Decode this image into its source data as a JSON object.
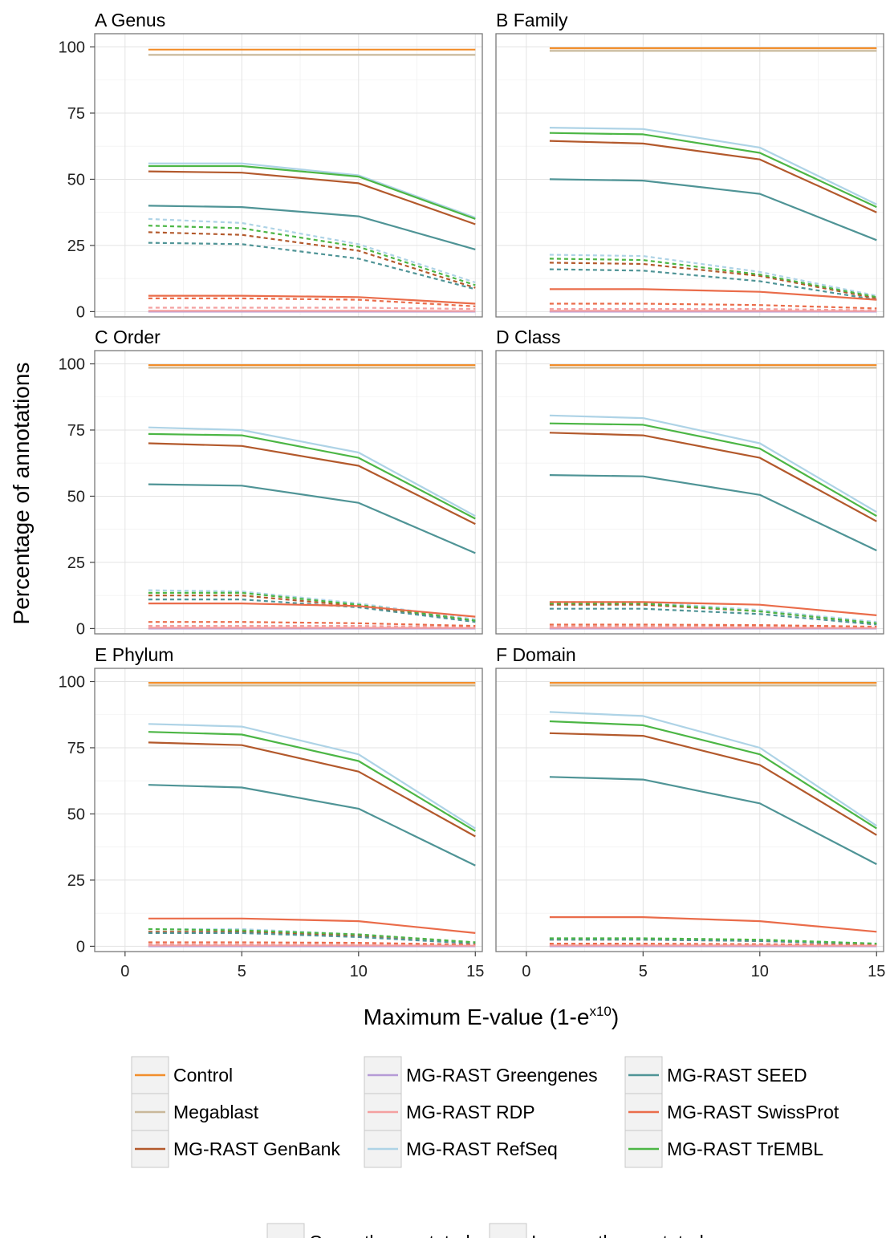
{
  "chart_data": {
    "type": "line",
    "facet_layout": "3 rows x 2 columns",
    "ylabel": "Percentage of annotations",
    "xlabel_main": "Maximum E-value (1-e",
    "xlabel_sup": "x10",
    "xlabel_close": ")",
    "ylim": [
      -2,
      105
    ],
    "xlim": [
      -1.3,
      15.3
    ],
    "x_ticks": [
      0,
      5,
      10,
      15
    ],
    "y_ticks": [
      0,
      25,
      50,
      75,
      100
    ],
    "x": [
      1,
      5,
      10,
      15
    ],
    "grid": true,
    "legend_position": "bottom",
    "series_legend": [
      {
        "name": "Control",
        "color": "#F28E2B"
      },
      {
        "name": "Megablast",
        "color": "#C9B89A"
      },
      {
        "name": "MG-RAST GenBank",
        "color": "#B3592C"
      },
      {
        "name": "MG-RAST Greengenes",
        "color": "#B69BD6"
      },
      {
        "name": "MG-RAST RDP",
        "color": "#F4A0A0"
      },
      {
        "name": "MG-RAST RefSeq",
        "color": "#AED3E6"
      },
      {
        "name": "MG-RAST SEED",
        "color": "#4F9496"
      },
      {
        "name": "MG-RAST SwissProt",
        "color": "#EA6C4A"
      },
      {
        "name": "MG-RAST TrEMBL",
        "color": "#4CB645"
      }
    ],
    "linetype_legend": [
      {
        "name": "Correctly annotated",
        "style": "solid"
      },
      {
        "name": "Incorrectly annotated",
        "style": "dashed"
      }
    ],
    "panels": [
      {
        "title": "A Genus",
        "correct": {
          "Control": [
            99,
            99,
            99,
            99
          ],
          "Megablast": [
            97,
            97,
            97,
            97
          ],
          "MG-RAST GenBank": [
            53,
            52.5,
            48.5,
            33
          ],
          "MG-RAST Greengenes": [
            0,
            0,
            0,
            0
          ],
          "MG-RAST RDP": [
            0.3,
            0.3,
            0.3,
            0.2
          ],
          "MG-RAST RefSeq": [
            56,
            56,
            51.5,
            35.5
          ],
          "MG-RAST SEED": [
            40,
            39.5,
            36,
            23.5
          ],
          "MG-RAST SwissProt": [
            6,
            6,
            5.5,
            3
          ],
          "MG-RAST TrEMBL": [
            55,
            55,
            51,
            35
          ]
        },
        "incorrect": {
          "MG-RAST GenBank": [
            30,
            29,
            23,
            9
          ],
          "MG-RAST Greengenes": [
            0,
            0,
            0,
            0
          ],
          "MG-RAST RDP": [
            1.5,
            1.5,
            1.5,
            1
          ],
          "MG-RAST RefSeq": [
            35,
            33.5,
            25.5,
            11
          ],
          "MG-RAST SEED": [
            26,
            25.5,
            20,
            8.5
          ],
          "MG-RAST SwissProt": [
            5,
            5,
            4.5,
            2
          ],
          "MG-RAST TrEMBL": [
            32.5,
            31.5,
            24.5,
            10
          ]
        }
      },
      {
        "title": "B Family",
        "correct": {
          "Control": [
            99.5,
            99.5,
            99.5,
            99.5
          ],
          "Megablast": [
            98.5,
            98.5,
            98.5,
            98.5
          ],
          "MG-RAST GenBank": [
            64.5,
            63.5,
            57.5,
            37.5
          ],
          "MG-RAST Greengenes": [
            0,
            0,
            0,
            0
          ],
          "MG-RAST RDP": [
            0.3,
            0.3,
            0.3,
            0.2
          ],
          "MG-RAST RefSeq": [
            69.5,
            69,
            62,
            40.5
          ],
          "MG-RAST SEED": [
            50,
            49.5,
            44.5,
            27
          ],
          "MG-RAST SwissProt": [
            8.5,
            8.5,
            7.5,
            4.5
          ],
          "MG-RAST TrEMBL": [
            67.5,
            67,
            60,
            39.5
          ]
        },
        "incorrect": {
          "MG-RAST GenBank": [
            18.5,
            18,
            13.5,
            5
          ],
          "MG-RAST Greengenes": [
            0,
            0,
            0,
            0
          ],
          "MG-RAST RDP": [
            1,
            1,
            1,
            0.5
          ],
          "MG-RAST RefSeq": [
            21.5,
            21,
            15,
            6
          ],
          "MG-RAST SEED": [
            16,
            15.5,
            11.5,
            4.5
          ],
          "MG-RAST SwissProt": [
            3,
            3,
            2.5,
            1.2
          ],
          "MG-RAST TrEMBL": [
            20,
            19.5,
            14,
            5.5
          ]
        }
      },
      {
        "title": "C Order",
        "correct": {
          "Control": [
            99.5,
            99.5,
            99.5,
            99.5
          ],
          "Megablast": [
            98.5,
            98.5,
            98.5,
            98.5
          ],
          "MG-RAST GenBank": [
            70,
            69,
            61.5,
            39.5
          ],
          "MG-RAST Greengenes": [
            0,
            0,
            0,
            0
          ],
          "MG-RAST RDP": [
            0.3,
            0.3,
            0.3,
            0.2
          ],
          "MG-RAST RefSeq": [
            76,
            75,
            66.5,
            42.5
          ],
          "MG-RAST SEED": [
            54.5,
            54,
            47.5,
            28.5
          ],
          "MG-RAST SwissProt": [
            9.5,
            9.5,
            8.5,
            4.5
          ],
          "MG-RAST TrEMBL": [
            73.5,
            73,
            64.5,
            41.5
          ]
        },
        "incorrect": {
          "MG-RAST GenBank": [
            12.5,
            12.5,
            8.5,
            3
          ],
          "MG-RAST Greengenes": [
            0,
            0,
            0,
            0
          ],
          "MG-RAST RDP": [
            1,
            1,
            1,
            0.5
          ],
          "MG-RAST RefSeq": [
            14.5,
            14,
            9.5,
            3.5
          ],
          "MG-RAST SEED": [
            11,
            11,
            8,
            2.5
          ],
          "MG-RAST SwissProt": [
            2.5,
            2.5,
            2,
            1
          ],
          "MG-RAST TrEMBL": [
            13.5,
            13.5,
            9,
            3
          ]
        }
      },
      {
        "title": "D Class",
        "correct": {
          "Control": [
            99.5,
            99.5,
            99.5,
            99.5
          ],
          "Megablast": [
            98.5,
            98.5,
            98.5,
            98.5
          ],
          "MG-RAST GenBank": [
            74,
            73,
            64.5,
            40.5
          ],
          "MG-RAST Greengenes": [
            0,
            0,
            0,
            0
          ],
          "MG-RAST RDP": [
            0.3,
            0.3,
            0.3,
            0.2
          ],
          "MG-RAST RefSeq": [
            80.5,
            79.5,
            70,
            44
          ],
          "MG-RAST SEED": [
            58,
            57.5,
            50.5,
            29.5
          ],
          "MG-RAST SwissProt": [
            10,
            10,
            9,
            5
          ],
          "MG-RAST TrEMBL": [
            77.5,
            77,
            68,
            42.5
          ]
        },
        "incorrect": {
          "MG-RAST GenBank": [
            9,
            9,
            6.5,
            2
          ],
          "MG-RAST Greengenes": [
            0,
            0,
            0,
            0
          ],
          "MG-RAST RDP": [
            0.8,
            0.8,
            0.7,
            0.4
          ],
          "MG-RAST RefSeq": [
            10,
            10,
            7,
            2.5
          ],
          "MG-RAST SEED": [
            7.5,
            7.5,
            5.5,
            1.5
          ],
          "MG-RAST SwissProt": [
            1.5,
            1.5,
            1.3,
            0.7
          ],
          "MG-RAST TrEMBL": [
            9.5,
            9.5,
            6.5,
            2
          ]
        }
      },
      {
        "title": "E Phylum",
        "correct": {
          "Control": [
            99.5,
            99.5,
            99.5,
            99.5
          ],
          "Megablast": [
            98.5,
            98.5,
            98.5,
            98.5
          ],
          "MG-RAST GenBank": [
            77,
            76,
            66,
            41.5
          ],
          "MG-RAST Greengenes": [
            0,
            0,
            0,
            0
          ],
          "MG-RAST RDP": [
            0.3,
            0.3,
            0.3,
            0.2
          ],
          "MG-RAST RefSeq": [
            84,
            83,
            72.5,
            44.5
          ],
          "MG-RAST SEED": [
            61,
            60,
            52,
            30.5
          ],
          "MG-RAST SwissProt": [
            10.5,
            10.5,
            9.5,
            5
          ],
          "MG-RAST TrEMBL": [
            81,
            80,
            70,
            43.5
          ]
        },
        "incorrect": {
          "MG-RAST GenBank": [
            5.5,
            5.5,
            4,
            1.5
          ],
          "MG-RAST Greengenes": [
            0,
            0,
            0,
            0
          ],
          "MG-RAST RDP": [
            0.7,
            0.7,
            0.6,
            0.3
          ],
          "MG-RAST RefSeq": [
            6.5,
            6.5,
            4.5,
            1.5
          ],
          "MG-RAST SEED": [
            5,
            5,
            3.5,
            1
          ],
          "MG-RAST SwissProt": [
            1.5,
            1.5,
            1.3,
            0.6
          ],
          "MG-RAST TrEMBL": [
            6.5,
            6,
            4.5,
            1.5
          ]
        }
      },
      {
        "title": "F Domain",
        "correct": {
          "Control": [
            99.5,
            99.5,
            99.5,
            99.5
          ],
          "Megablast": [
            98.5,
            98.5,
            98.5,
            98.5
          ],
          "MG-RAST GenBank": [
            80.5,
            79.5,
            68.5,
            42
          ],
          "MG-RAST Greengenes": [
            0,
            0,
            0,
            0
          ],
          "MG-RAST RDP": [
            0.3,
            0.3,
            0.3,
            0.2
          ],
          "MG-RAST RefSeq": [
            88.5,
            87,
            75,
            45.5
          ],
          "MG-RAST SEED": [
            64,
            63,
            54,
            31
          ],
          "MG-RAST SwissProt": [
            11,
            11,
            9.5,
            5.5
          ],
          "MG-RAST TrEMBL": [
            85,
            83.5,
            72.5,
            44.5
          ]
        },
        "incorrect": {
          "MG-RAST GenBank": [
            2.5,
            2.5,
            2,
            0.8
          ],
          "MG-RAST Greengenes": [
            0,
            0,
            0,
            0
          ],
          "MG-RAST RDP": [
            0.5,
            0.5,
            0.5,
            0.3
          ],
          "MG-RAST RefSeq": [
            3,
            3,
            2.5,
            1
          ],
          "MG-RAST SEED": [
            2.5,
            2.5,
            2,
            0.8
          ],
          "MG-RAST SwissProt": [
            1,
            1,
            0.8,
            0.5
          ],
          "MG-RAST TrEMBL": [
            3,
            3,
            2.5,
            1
          ]
        }
      }
    ]
  }
}
